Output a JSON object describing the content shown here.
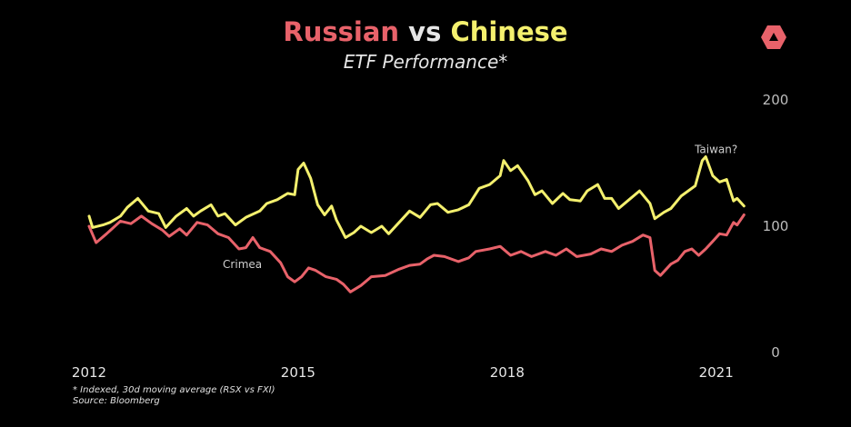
{
  "title": {
    "part1": "Russian",
    "part2": " vs ",
    "part3": "Chinese",
    "color_russian": "#e8626a",
    "color_vs": "#e6e6e6",
    "color_chinese": "#f4f06e"
  },
  "subtitle": "ETF Performance*",
  "logo_icon": "red-hexagon-logo-icon",
  "footnote": {
    "line1": "* Indexed, 30d moving average (RSX vs FXI)",
    "line2": "Source: Bloomberg"
  },
  "chart_data": {
    "type": "line",
    "title": "Russian vs Chinese",
    "subtitle": "ETF Performance*",
    "xlabel": "",
    "ylabel": "",
    "xlim": [
      2012,
      2021.5
    ],
    "ylim": [
      0,
      200
    ],
    "yaxis_position": "right",
    "y_ticks": [
      0,
      100,
      200
    ],
    "x_ticks": [
      {
        "value": 2012,
        "label": "2012"
      },
      {
        "value": 2015,
        "label": "2015"
      },
      {
        "value": 2018,
        "label": "2018"
      },
      {
        "value": 2021,
        "label": "2021"
      }
    ],
    "grid": false,
    "legend": "none (series named by colored words in title)",
    "annotations": [
      {
        "text": "Crimea",
        "x": 2014.2,
        "y": 67
      },
      {
        "text": "Taiwan?",
        "x": 2021.0,
        "y": 158
      }
    ],
    "series": [
      {
        "name": "Chinese",
        "color": "#f4f06e",
        "points": [
          [
            2012.0,
            108
          ],
          [
            2012.05,
            99
          ],
          [
            2012.2,
            101
          ],
          [
            2012.3,
            103
          ],
          [
            2012.45,
            108
          ],
          [
            2012.55,
            115
          ],
          [
            2012.7,
            122
          ],
          [
            2012.85,
            112
          ],
          [
            2013.0,
            110
          ],
          [
            2013.1,
            99
          ],
          [
            2013.25,
            108
          ],
          [
            2013.4,
            114
          ],
          [
            2013.5,
            108
          ],
          [
            2013.6,
            112
          ],
          [
            2013.75,
            117
          ],
          [
            2013.85,
            108
          ],
          [
            2013.95,
            110
          ],
          [
            2014.1,
            101
          ],
          [
            2014.25,
            107
          ],
          [
            2014.45,
            112
          ],
          [
            2014.55,
            118
          ],
          [
            2014.7,
            121
          ],
          [
            2014.85,
            126
          ],
          [
            2014.95,
            125
          ],
          [
            2015.0,
            145
          ],
          [
            2015.08,
            150
          ],
          [
            2015.18,
            138
          ],
          [
            2015.28,
            117
          ],
          [
            2015.38,
            109
          ],
          [
            2015.48,
            116
          ],
          [
            2015.55,
            105
          ],
          [
            2015.68,
            91
          ],
          [
            2015.8,
            95
          ],
          [
            2015.9,
            100
          ],
          [
            2016.05,
            95
          ],
          [
            2016.2,
            100
          ],
          [
            2016.3,
            94
          ],
          [
            2016.45,
            103
          ],
          [
            2016.6,
            112
          ],
          [
            2016.75,
            107
          ],
          [
            2016.9,
            117
          ],
          [
            2017.0,
            118
          ],
          [
            2017.15,
            111
          ],
          [
            2017.3,
            113
          ],
          [
            2017.45,
            117
          ],
          [
            2017.6,
            130
          ],
          [
            2017.75,
            133
          ],
          [
            2017.9,
            140
          ],
          [
            2017.95,
            152
          ],
          [
            2018.05,
            144
          ],
          [
            2018.15,
            148
          ],
          [
            2018.3,
            136
          ],
          [
            2018.4,
            125
          ],
          [
            2018.5,
            128
          ],
          [
            2018.65,
            118
          ],
          [
            2018.8,
            126
          ],
          [
            2018.9,
            121
          ],
          [
            2019.05,
            120
          ],
          [
            2019.15,
            128
          ],
          [
            2019.3,
            133
          ],
          [
            2019.4,
            122
          ],
          [
            2019.5,
            122
          ],
          [
            2019.6,
            114
          ],
          [
            2019.75,
            121
          ],
          [
            2019.9,
            128
          ],
          [
            2020.05,
            118
          ],
          [
            2020.12,
            106
          ],
          [
            2020.25,
            111
          ],
          [
            2020.35,
            114
          ],
          [
            2020.5,
            124
          ],
          [
            2020.6,
            128
          ],
          [
            2020.7,
            132
          ],
          [
            2020.8,
            152
          ],
          [
            2020.85,
            155
          ],
          [
            2020.95,
            140
          ],
          [
            2021.05,
            135
          ],
          [
            2021.15,
            137
          ],
          [
            2021.25,
            120
          ],
          [
            2021.3,
            122
          ],
          [
            2021.4,
            116
          ]
        ]
      },
      {
        "name": "Russian",
        "color": "#e8626a",
        "points": [
          [
            2012.0,
            100
          ],
          [
            2012.1,
            87
          ],
          [
            2012.25,
            94
          ],
          [
            2012.45,
            104
          ],
          [
            2012.6,
            102
          ],
          [
            2012.75,
            108
          ],
          [
            2012.9,
            102
          ],
          [
            2013.05,
            97
          ],
          [
            2013.15,
            92
          ],
          [
            2013.3,
            98
          ],
          [
            2013.4,
            93
          ],
          [
            2013.55,
            103
          ],
          [
            2013.7,
            101
          ],
          [
            2013.85,
            94
          ],
          [
            2014.0,
            91
          ],
          [
            2014.15,
            82
          ],
          [
            2014.25,
            83
          ],
          [
            2014.35,
            91
          ],
          [
            2014.45,
            83
          ],
          [
            2014.6,
            80
          ],
          [
            2014.75,
            71
          ],
          [
            2014.85,
            60
          ],
          [
            2014.95,
            56
          ],
          [
            2015.05,
            60
          ],
          [
            2015.15,
            67
          ],
          [
            2015.25,
            65
          ],
          [
            2015.4,
            60
          ],
          [
            2015.55,
            58
          ],
          [
            2015.65,
            54
          ],
          [
            2015.75,
            48
          ],
          [
            2015.9,
            53
          ],
          [
            2016.05,
            60
          ],
          [
            2016.25,
            61
          ],
          [
            2016.45,
            66
          ],
          [
            2016.6,
            69
          ],
          [
            2016.75,
            70
          ],
          [
            2016.85,
            74
          ],
          [
            2016.95,
            77
          ],
          [
            2017.1,
            76
          ],
          [
            2017.3,
            72
          ],
          [
            2017.45,
            75
          ],
          [
            2017.55,
            80
          ],
          [
            2017.75,
            82
          ],
          [
            2017.9,
            84
          ],
          [
            2018.05,
            77
          ],
          [
            2018.2,
            80
          ],
          [
            2018.35,
            76
          ],
          [
            2018.55,
            80
          ],
          [
            2018.7,
            77
          ],
          [
            2018.85,
            82
          ],
          [
            2019.0,
            76
          ],
          [
            2019.2,
            78
          ],
          [
            2019.35,
            82
          ],
          [
            2019.5,
            80
          ],
          [
            2019.65,
            85
          ],
          [
            2019.8,
            88
          ],
          [
            2019.95,
            93
          ],
          [
            2020.05,
            91
          ],
          [
            2020.12,
            65
          ],
          [
            2020.2,
            61
          ],
          [
            2020.35,
            70
          ],
          [
            2020.45,
            73
          ],
          [
            2020.55,
            80
          ],
          [
            2020.65,
            82
          ],
          [
            2020.75,
            77
          ],
          [
            2020.85,
            82
          ],
          [
            2020.95,
            88
          ],
          [
            2021.05,
            94
          ],
          [
            2021.15,
            93
          ],
          [
            2021.25,
            103
          ],
          [
            2021.3,
            101
          ],
          [
            2021.4,
            109
          ]
        ]
      }
    ]
  }
}
